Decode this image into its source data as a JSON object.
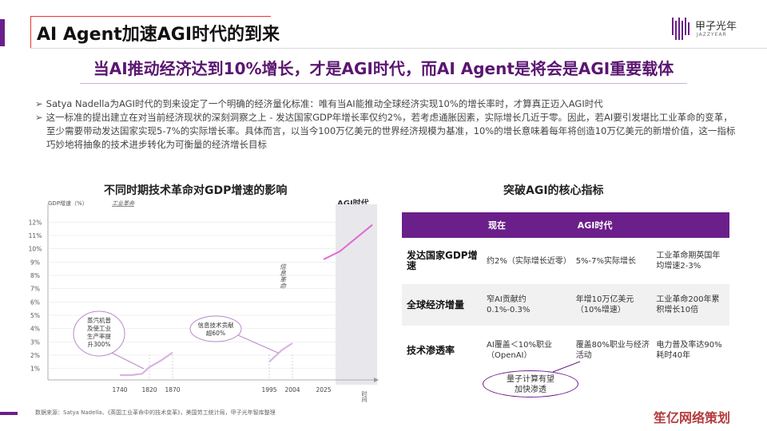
{
  "header": {
    "title": "AI Agent加速AGI时代的到来",
    "logo_text": "甲子光年",
    "logo_sub": "JAZZYEAR"
  },
  "subtitle": "当AI推动经济达到10%增长，才是AGI时代，而AI Agent是将会是AGI重要载体",
  "bullets": [
    "Satya Nadella为AGI时代的到来设定了一个明确的经济量化标准：唯有当AI能推动全球经济实现10%的增长率时，才算真正迈入AGI时代",
    "这一标准的提出建立在对当前经济现状的深刻洞察之上 - 发达国家GDP年增长率仅约2%，若考虑通胀因素，实际增长几近于零。因此，若AI要引发堪比工业革命的变革，至少需要带动发达国家实现5-7%的实际增长率。具体而言，以当今100万亿美元的世界经济规模为基准，10%的增长意味着每年将创造10万亿美元的新增价值，这一指标巧妙地将抽象的技术进步转化为可衡量的经济增长目标"
  ],
  "chart": {
    "title": "不同时期技术革命对GDP增速的影响",
    "agi_label": "AGI时代",
    "ylabel": "GDP增速（%）",
    "era_label": "工业革命",
    "info_label": "信息革命",
    "x_axis_label": "时间",
    "callout1": [
      "蒸汽机普",
      "及使工业",
      "生产率提",
      "升300%"
    ],
    "callout2": [
      "信息技术贡献",
      "超60%"
    ]
  },
  "chart_data": {
    "type": "line",
    "title": "不同时期技术革命对GDP增速的影响",
    "ylabel": "GDP增速（%）",
    "xlabel": "时间",
    "y_ticks": [
      "1%",
      "2%",
      "3%",
      "4%",
      "5%",
      "6%",
      "7%",
      "8%",
      "9%",
      "10%",
      "11%",
      "12%"
    ],
    "x_ticks": [
      "1740",
      "1820",
      "1870",
      "1995",
      "2004",
      "2025"
    ],
    "ylim": [
      0.5,
      12.5
    ],
    "series": [
      {
        "x": [
          1740,
          1770,
          1800,
          1820,
          1845,
          1870
        ],
        "y": [
          0.5,
          0.5,
          0.6,
          1.1,
          1.6,
          2.2
        ]
      },
      {
        "x": [
          1995,
          2000,
          2004
        ],
        "y": [
          1.5,
          2.4,
          2.9
        ]
      },
      {
        "x": [
          2025,
          2030,
          2035,
          2040
        ],
        "y": [
          9.2,
          9.8,
          10.8,
          11.8
        ]
      }
    ]
  },
  "table": {
    "title": "突破AGI的核心指标",
    "headers": [
      "",
      "现在",
      "AGI时代",
      ""
    ],
    "rows": [
      {
        "head": "发达国家GDP增速",
        "now": "约2%（实际增长近零）",
        "agi": "5%-7%实际增长",
        "ref": "工业革命期英国年均增速2-3%"
      },
      {
        "head": "全球经济增量",
        "now": "窄AI贡献约0.1%-0.3%",
        "agi": "年增10万亿美元（10%增速）",
        "ref": "工业革命200年累积增长10倍"
      },
      {
        "head": "技术渗透率",
        "now": "AI覆盖＜10%职业（OpenAI）",
        "agi": "覆盖80%职业与经济活动",
        "ref": "电力普及率达90%耗时40年"
      }
    ],
    "callout": [
      "量子计算有望",
      "加快渗透"
    ]
  },
  "source": "数据来源：Satya Nadella、《英国工业革命中的技术变革》，美国劳工统计局，甲子光年智库整理",
  "watermark": "笙亿网络策划",
  "colors": {
    "accent": "#6b1f8a",
    "line": "#e06ad0",
    "title": "#5a1670"
  }
}
